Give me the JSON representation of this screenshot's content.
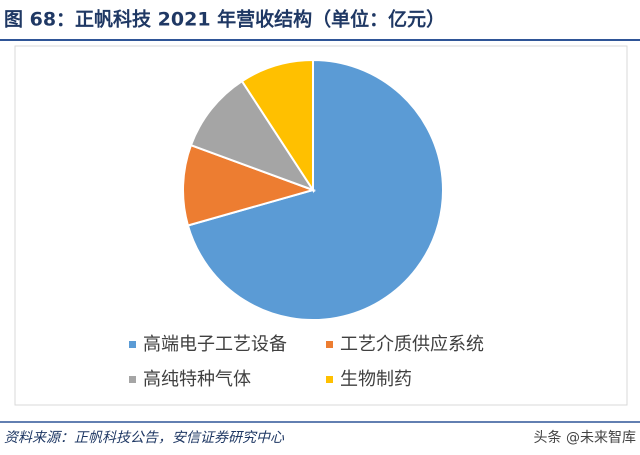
{
  "chart_data": {
    "type": "pie",
    "title": "图 68：正帆科技 2021 年营收结构（单位：亿元）",
    "categories": [
      "高端电子工艺设备",
      "工艺介质供应系统",
      "高纯特种气体",
      "生物制药"
    ],
    "values": [
      70.6,
      10,
      10.2,
      9.2
    ],
    "colors": [
      "#5b9bd5",
      "#ed7d31",
      "#a5a5a5",
      "#ffc000"
    ],
    "source": "资料来源：正帆科技公告，安信证券研究中心",
    "watermark": "头条 @未来智库"
  }
}
